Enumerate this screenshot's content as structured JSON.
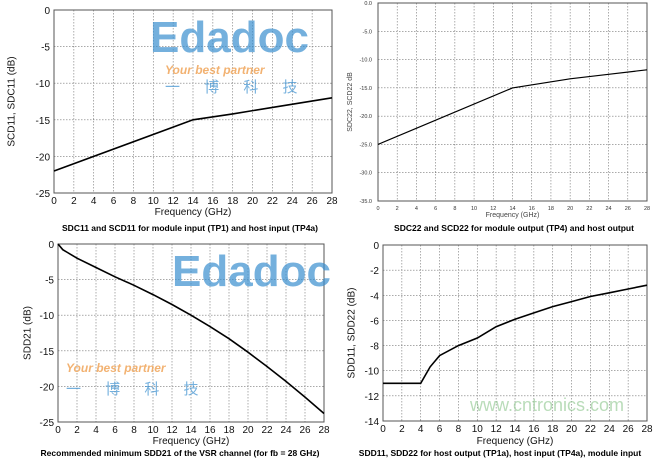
{
  "chart_data": [
    {
      "type": "line",
      "title": "SDC11 and SCD11 for module input (TP1) and host input (TP4a)",
      "xlabel": "Frequency (GHz)",
      "ylabel": "SCD11, SDC11 (dB)",
      "xlim": [
        0,
        28
      ],
      "ylim": [
        -25,
        0
      ],
      "xticks": [
        "0",
        "2",
        "4",
        "6",
        "8",
        "10",
        "12",
        "14",
        "16",
        "18",
        "20",
        "22",
        "24",
        "26",
        "28"
      ],
      "yticks": [
        "0",
        "-5",
        "-10",
        "-15",
        "-20",
        "-25"
      ],
      "grid": true,
      "x": [
        0,
        14,
        18,
        22,
        28
      ],
      "y": [
        -22,
        -15,
        -14.2,
        -13.3,
        -12
      ]
    },
    {
      "type": "line",
      "title": "SDC22 and SCD22 for module output (TP4) and host output",
      "xlabel": "Frequency (GHz)",
      "ylabel": "SDC22, SCD22 dB",
      "xlim": [
        0,
        28
      ],
      "ylim": [
        -35,
        0
      ],
      "xticks": [
        "0",
        "2",
        "4",
        "6",
        "8",
        "10",
        "12",
        "14",
        "16",
        "18",
        "20",
        "22",
        "24",
        "26",
        "28"
      ],
      "yticks": [
        "0.0",
        "-5.0",
        "-10.0",
        "-15.0",
        "-20.0",
        "-25.0",
        "-30.0",
        "-35.0"
      ],
      "grid": true,
      "x": [
        0,
        14,
        20,
        24,
        28
      ],
      "y": [
        -25,
        -15,
        -13.4,
        -12.6,
        -11.8
      ]
    },
    {
      "type": "line",
      "title": "Recommended minimum SDD21 of the VSR channel (for fb = 28 GHz)",
      "xlabel": "Frequency (GHz)",
      "ylabel": "SDD21 (dB)",
      "xlim": [
        0,
        28
      ],
      "ylim": [
        -25,
        0
      ],
      "xticks": [
        "0",
        "2",
        "4",
        "6",
        "8",
        "10",
        "12",
        "14",
        "16",
        "18",
        "20",
        "22",
        "24",
        "26",
        "28"
      ],
      "yticks": [
        "0",
        "-5",
        "-10",
        "-15",
        "-20",
        "-25"
      ],
      "grid": true,
      "x": [
        0,
        0.5,
        1,
        2,
        4,
        6,
        8,
        10,
        12,
        14,
        16,
        18,
        20,
        22,
        24,
        26,
        28
      ],
      "y": [
        0,
        -0.8,
        -1.2,
        -2,
        -3.3,
        -4.6,
        -5.8,
        -7.1,
        -8.5,
        -10,
        -11.6,
        -13.3,
        -15.2,
        -17.2,
        -19.3,
        -21.5,
        -23.8
      ]
    },
    {
      "type": "line",
      "title": "SDD11, SDD22 for host output (TP1a), host input (TP4a), module input",
      "xlabel": "Frequency (GHz)",
      "ylabel": "SDD11, SDD22 (dB)",
      "xlim": [
        0,
        28
      ],
      "ylim": [
        -14,
        0
      ],
      "xticks": [
        "0",
        "2",
        "4",
        "6",
        "8",
        "10",
        "12",
        "14",
        "16",
        "18",
        "20",
        "22",
        "24",
        "26",
        "28"
      ],
      "yticks": [
        "0",
        "-2",
        "-4",
        "-6",
        "-8",
        "-10",
        "-12",
        "-14"
      ],
      "grid": true,
      "x": [
        0,
        4,
        5,
        6,
        8,
        10,
        12,
        14,
        16,
        18,
        20,
        22,
        24,
        26,
        28
      ],
      "y": [
        -11,
        -11,
        -9.7,
        -8.8,
        -8.0,
        -7.4,
        -6.5,
        -5.9,
        -5.4,
        -4.9,
        -4.5,
        -4.1,
        -3.8,
        -3.5,
        -3.2
      ]
    }
  ],
  "watermarks": {
    "logo": "Edadoc",
    "tagline": "Your best partner",
    "chinese": "一 博 科 技",
    "site": "www.cntronics.com"
  }
}
